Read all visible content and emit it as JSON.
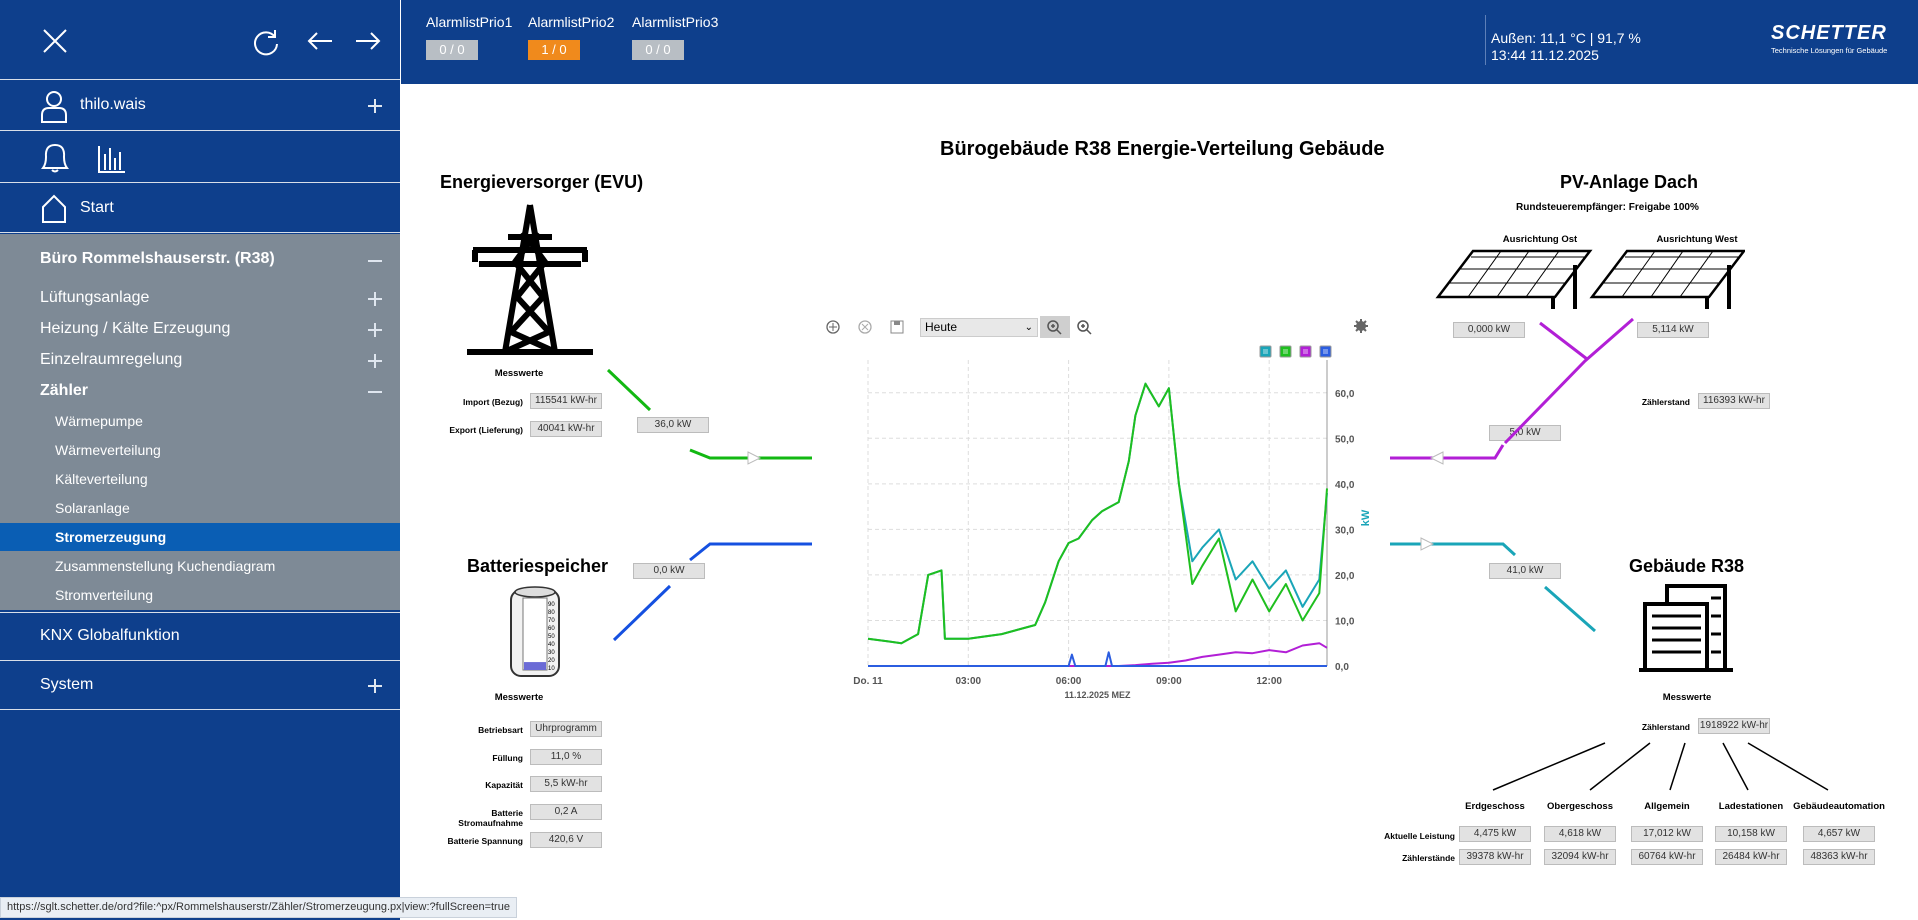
{
  "sidebar": {
    "user": "thilo.wais",
    "start": "Start",
    "building": "Büro Rommelshauserstr. (R38)",
    "groups": [
      {
        "label": "Lüftungsanlage"
      },
      {
        "label": "Heizung / Kälte Erzeugung"
      },
      {
        "label": "Einzelraumregelung"
      },
      {
        "label": "Zähler"
      }
    ],
    "sub_items": [
      "Wärmepumpe",
      "Wärmeverteilung",
      "Kälteverteilung",
      "Solaranlage",
      "Stromerzeugung",
      "Zusammenstellung Kuchendiagram",
      "Stromverteilung"
    ],
    "active_item": "Stromerzeugung",
    "knx": "KNX Globalfunktion",
    "system": "System"
  },
  "topbar": {
    "alarms": [
      {
        "label": "AlarmlistPrio1",
        "value": "0 / 0"
      },
      {
        "label": "AlarmlistPrio2",
        "value": "1 / 0"
      },
      {
        "label": "AlarmlistPrio3",
        "value": "0 / 0"
      }
    ],
    "weather": "Außen: 11,1 °C | 91,7 %",
    "datetime": "13:44 11.12.2025",
    "logo": "SCHETTER",
    "logo_sub": "Technische Lösungen für Gebäude"
  },
  "page_title": "Bürogebäude R38 Energie-Verteilung Gebäude",
  "evu": {
    "title": "Energieversorger (EVU)",
    "messwerte": "Messwerte",
    "import_label": "Import (Bezug)",
    "import_value": "115541 kW-hr",
    "export_label": "Export (Lieferung)",
    "export_value": "40041 kW-hr",
    "flow": "36,0 kW"
  },
  "battery": {
    "title": "Batteriespeicher",
    "messwerte": "Messwerte",
    "flow": "0,0 kW",
    "scale": [
      "90",
      "80",
      "70",
      "60",
      "50",
      "40",
      "30",
      "20",
      "10"
    ],
    "fill_percent": 11,
    "rows": [
      {
        "label": "Betriebsart",
        "value": "Uhrprogramm"
      },
      {
        "label": "Füllung",
        "value": "11,0 %"
      },
      {
        "label": "Kapazität",
        "value": "5,5 kW-hr"
      },
      {
        "label": "Batterie Stromaufnahme",
        "value": "0,2 A"
      },
      {
        "label": "Batterie Spannung",
        "value": "420,6 V"
      }
    ]
  },
  "pv": {
    "title": "PV-Anlage Dach",
    "rse_label": "Rundsteuerempfänger:",
    "rse_value": "Freigabe 100%",
    "east_label": "Ausrichtung Ost",
    "east_value": "0,000 kW",
    "west_label": "Ausrichtung West",
    "west_value": "5,114 kW",
    "counter_label": "Zählerstand",
    "counter_value": "116393 kW-hr",
    "flow": "5,0 kW"
  },
  "building": {
    "title": "Gebäude R38",
    "messwerte": "Messwerte",
    "counter_label": "Zählerstand",
    "counter_value": "1918922 kW-hr",
    "flow": "41,0 kW",
    "row_power": "Aktuelle Leistung",
    "row_counter": "Zählerstände",
    "columns": [
      {
        "name": "Erdgeschoss",
        "power": "4,475 kW",
        "counter": "39378 kW-hr"
      },
      {
        "name": "Obergeschoss",
        "power": "4,618 kW",
        "counter": "32094 kW-hr"
      },
      {
        "name": "Allgemein",
        "power": "17,012 kW",
        "counter": "60764 kW-hr"
      },
      {
        "name": "Ladestationen",
        "power": "10,158 kW",
        "counter": "26484 kW-hr"
      },
      {
        "name": "Gebäudeautomation",
        "power": "4,657 kW",
        "counter": "48363 kW-hr"
      }
    ]
  },
  "chart_toolbar": {
    "range": "Heute"
  },
  "status_url": "https://sglt.schetter.de/ord?file:^px/Rommelshauserstr/Zähler/Stromerzeugung.px|view:?fullScreen=true",
  "chart_data": {
    "type": "line",
    "xlabel": "11.12.2025 MEZ",
    "ylabel": "kW",
    "x_ticks": [
      "Do. 11",
      "03:00",
      "06:00",
      "09:00",
      "12:00"
    ],
    "x_range_hours": [
      0,
      13.73
    ],
    "ylim": [
      0,
      65
    ],
    "y_ticks": [
      "0,0",
      "10,0",
      "20,0",
      "30,0",
      "40,0",
      "50,0",
      "60,0"
    ],
    "grid": true,
    "legend": "top-right",
    "series": [
      {
        "color": "#1aa5b8",
        "x": [
          0,
          1,
          1.5,
          1.8,
          2.2,
          2.3,
          3,
          4,
          5,
          5.3,
          5.7,
          6,
          6.3,
          6.7,
          7,
          7.5,
          7.8,
          8,
          8.3,
          8.7,
          9,
          9.3,
          9.7,
          10,
          10.5,
          11,
          11.5,
          12,
          12.5,
          13,
          13.5,
          13.73
        ],
        "values": [
          6,
          5,
          7,
          20,
          21,
          6,
          6,
          7,
          9,
          14,
          23,
          27,
          28,
          32,
          34,
          36,
          45,
          55,
          62,
          57,
          61,
          40,
          23,
          26,
          30,
          19,
          23,
          17,
          21,
          13,
          19,
          38
        ]
      },
      {
        "color": "#1fbf1f",
        "x": [
          0,
          1,
          1.5,
          1.8,
          2.2,
          2.3,
          3,
          4,
          5,
          5.3,
          5.7,
          6,
          6.3,
          6.7,
          7,
          7.5,
          7.8,
          8,
          8.3,
          8.7,
          9,
          9.3,
          9.7,
          10,
          10.5,
          11,
          11.5,
          12,
          12.5,
          13,
          13.5,
          13.73
        ],
        "values": [
          6,
          5,
          7,
          20,
          21,
          6,
          6,
          7,
          9,
          14,
          23,
          27,
          28,
          32,
          34,
          36,
          45,
          55,
          62,
          57,
          61,
          40,
          18,
          22,
          28,
          12,
          19,
          12,
          18,
          10,
          16,
          39
        ]
      },
      {
        "color": "#b21fd6",
        "x": [
          0,
          7.5,
          8,
          8.5,
          9,
          9.5,
          10,
          10.5,
          11,
          11.5,
          12,
          12.5,
          13,
          13.5,
          13.73
        ],
        "values": [
          0,
          0,
          0.2,
          0.5,
          0.7,
          1.2,
          2,
          2.5,
          3,
          2.8,
          3.5,
          3,
          4.5,
          5,
          4
        ]
      },
      {
        "color": "#2b5de0",
        "x": [
          0,
          6,
          6.1,
          6.2,
          7.1,
          7.2,
          7.3,
          13.73
        ],
        "values": [
          0,
          0,
          2.5,
          0,
          0,
          3,
          0,
          0
        ]
      }
    ]
  }
}
